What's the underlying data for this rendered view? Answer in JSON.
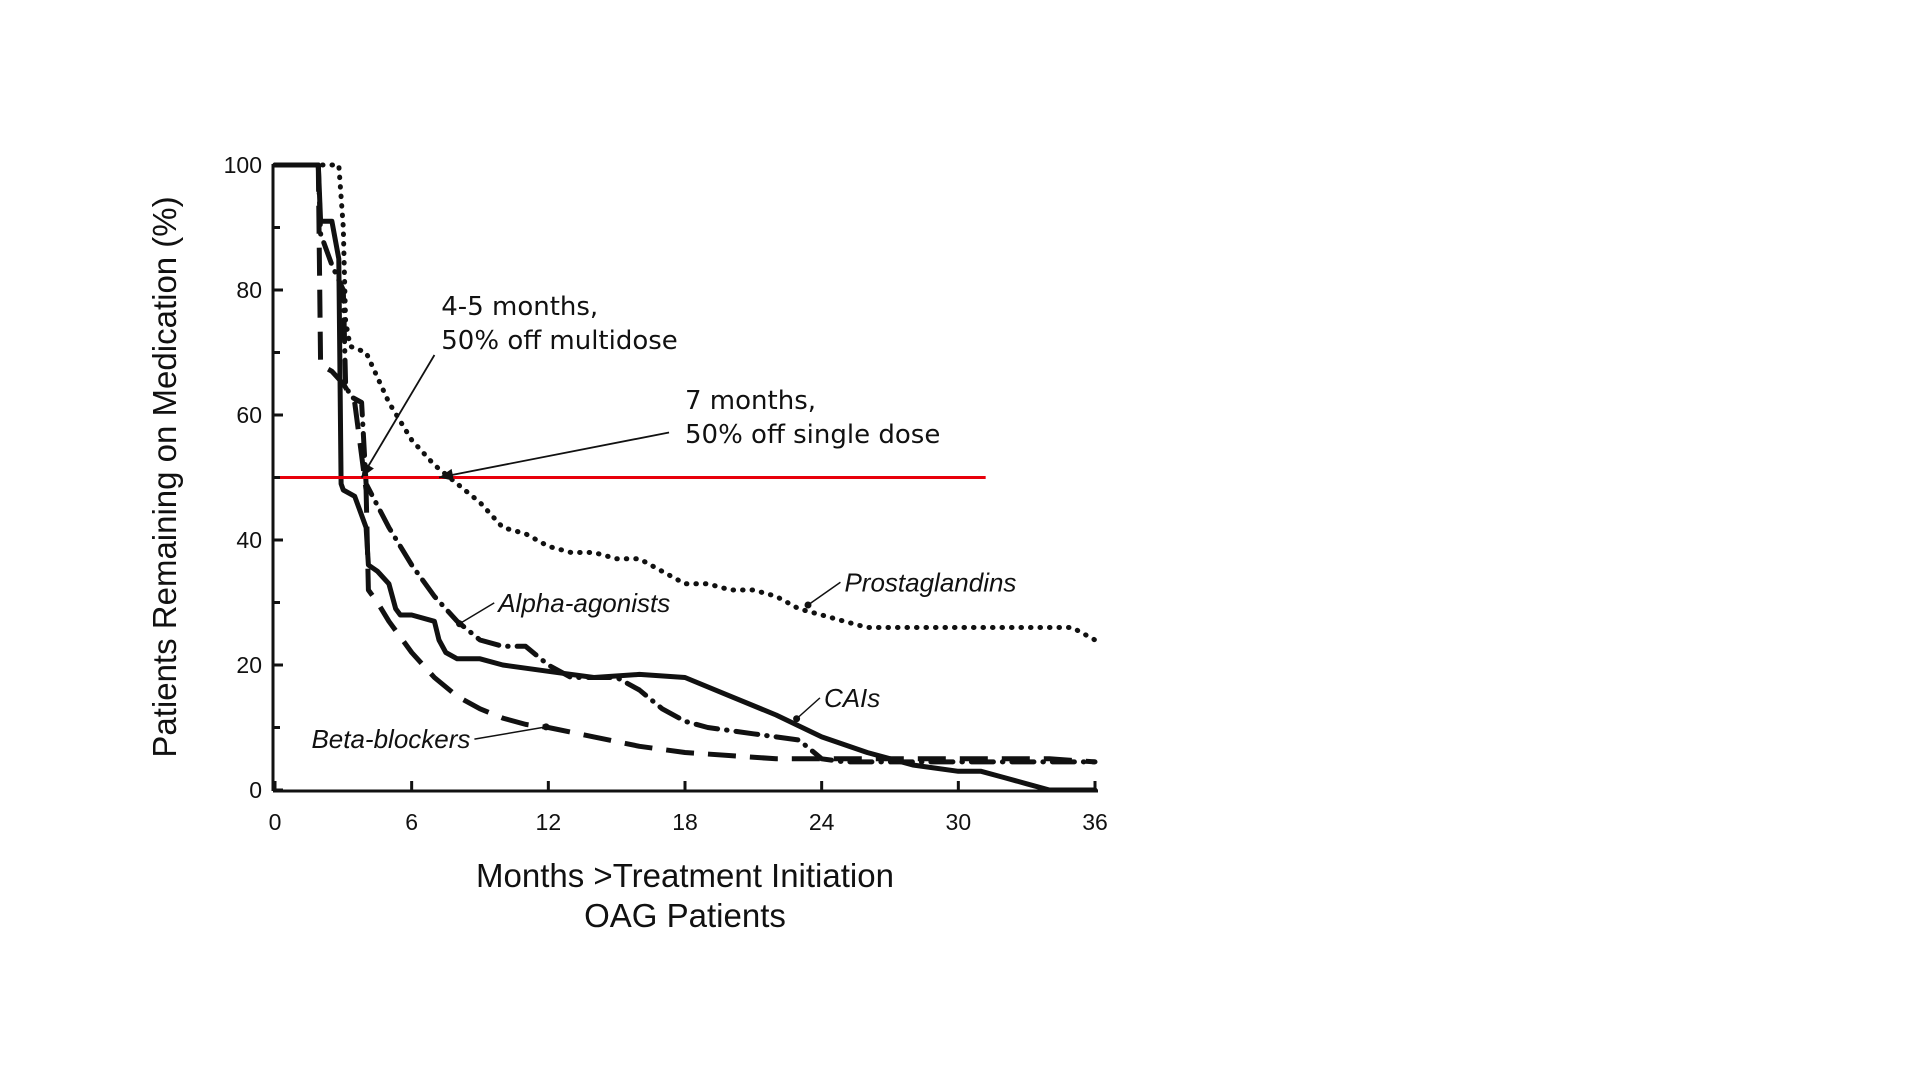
{
  "chart_data": {
    "type": "line",
    "xlabel": "Months >Treatment Initiation",
    "xlabel_line2": "OAG Patients",
    "ylabel": "Patients Remaining on Medication (%)",
    "xlim": [
      0,
      36
    ],
    "ylim": [
      0,
      100
    ],
    "xticks": [
      0,
      6,
      12,
      18,
      24,
      30,
      36
    ],
    "yticks": [
      0,
      20,
      40,
      60,
      80,
      100
    ],
    "grid": false,
    "reference_line": {
      "y": 50,
      "x_range": [
        0,
        31.2
      ],
      "color": "#e8000b"
    },
    "series": [
      {
        "name": "Prostaglandins",
        "style": "dotted",
        "x": [
          0,
          2.8,
          3.0,
          3.1,
          3.3,
          4,
          5,
          6,
          7,
          8,
          9,
          10,
          11,
          12,
          13,
          14,
          15,
          16,
          17,
          18,
          19,
          20,
          21,
          22,
          23,
          24,
          25,
          26,
          27,
          28,
          29,
          30,
          31,
          32,
          33,
          34,
          35,
          36
        ],
        "y": [
          100,
          100,
          90,
          75,
          71,
          70,
          62,
          56,
          52,
          49,
          46,
          42,
          41,
          39,
          38,
          38,
          37,
          37,
          35,
          33,
          33,
          32,
          32,
          31,
          29,
          28,
          27,
          26,
          26,
          26,
          26,
          26,
          26,
          26,
          26,
          26,
          26,
          24
        ]
      },
      {
        "name": "Alpha-agonists",
        "style": "dash-dot",
        "x": [
          0,
          1.9,
          2.0,
          2.5,
          3.0,
          3.1,
          3.3,
          3.8,
          4.0,
          5,
          6,
          7,
          8,
          9,
          10,
          11,
          12,
          13,
          14,
          15,
          16,
          17,
          18,
          19,
          20,
          21,
          22,
          23,
          24,
          25,
          26,
          27,
          28,
          29,
          30,
          31,
          32,
          33,
          34,
          35,
          36
        ],
        "y": [
          100,
          100,
          89,
          84,
          80,
          65,
          63,
          62,
          49,
          42,
          36,
          31,
          27,
          24,
          23,
          23,
          20,
          18,
          18,
          18,
          16,
          13,
          11,
          10,
          9.5,
          9,
          8.5,
          8,
          5,
          4.5,
          4.5,
          4.5,
          4.5,
          4.5,
          4.5,
          4.5,
          4.5,
          4.5,
          4.5,
          4.5,
          4.5
        ]
      },
      {
        "name": "CAIs",
        "style": "solid",
        "x": [
          0,
          1.9,
          2.0,
          2.5,
          2.8,
          2.9,
          3.0,
          3.5,
          4.0,
          4.1,
          4.5,
          5,
          5.3,
          5.5,
          6,
          7,
          7.2,
          7.5,
          8,
          9,
          10,
          12,
          14,
          16,
          18,
          20,
          22,
          24,
          26,
          28,
          30,
          31,
          32,
          33,
          34,
          35,
          36
        ],
        "y": [
          100,
          100,
          91,
          91,
          85,
          49,
          48,
          47,
          42,
          36,
          35,
          33,
          29,
          28,
          28,
          27,
          24,
          22,
          21,
          21,
          20,
          19,
          18,
          18.5,
          18,
          15,
          12,
          8.5,
          6,
          4,
          3,
          3,
          2,
          1,
          0,
          0,
          0
        ]
      },
      {
        "name": "Beta-blockers",
        "style": "dashed",
        "x": [
          0,
          1.9,
          2.0,
          2.5,
          3.0,
          3.5,
          4.0,
          4.1,
          4.5,
          5,
          6,
          7,
          8,
          9,
          10,
          11,
          12,
          14,
          16,
          18,
          20,
          22,
          24,
          26,
          28,
          30,
          32,
          34,
          36
        ],
        "y": [
          100,
          100,
          68,
          67,
          65,
          62,
          48,
          32,
          30,
          27,
          22,
          18,
          15,
          13,
          11.5,
          10.5,
          10,
          8.5,
          7,
          6,
          5.5,
          5,
          5,
          5,
          5,
          5,
          5,
          5,
          4.5
        ]
      }
    ],
    "series_labels": [
      {
        "text": "Prostaglandins",
        "series": "Prostaglandins",
        "at": [
          25.0,
          31.8
        ],
        "leader_to": [
          23.4,
          29.6
        ]
      },
      {
        "text": "Alpha-agonists",
        "series": "Alpha-agonists",
        "at": [
          9.8,
          28.5
        ],
        "leader_to": [
          8.1,
          26.6
        ]
      },
      {
        "text": "CAIs",
        "series": "CAIs",
        "at": [
          24.1,
          13.3
        ],
        "leader_to": [
          22.9,
          11.4
        ]
      },
      {
        "text": "Beta-blockers",
        "series": "Beta-blockers",
        "at": [
          1.6,
          6.7
        ],
        "leader_to": [
          11.9,
          10.1
        ]
      }
    ],
    "annotations": [
      {
        "lines": [
          "4-5 months,",
          "50% off multidose"
        ],
        "anchor": [
          7.3,
          76.0
        ],
        "leader_from": [
          7.0,
          69.6
        ],
        "leader_to": [
          3.8,
          50.0
        ]
      },
      {
        "lines": [
          "7 months,",
          "50% off single dose"
        ],
        "anchor": [
          18.0,
          61.0
        ],
        "leader_from": [
          17.3,
          57.2
        ],
        "leader_to": [
          7.2,
          50.0
        ]
      }
    ]
  }
}
